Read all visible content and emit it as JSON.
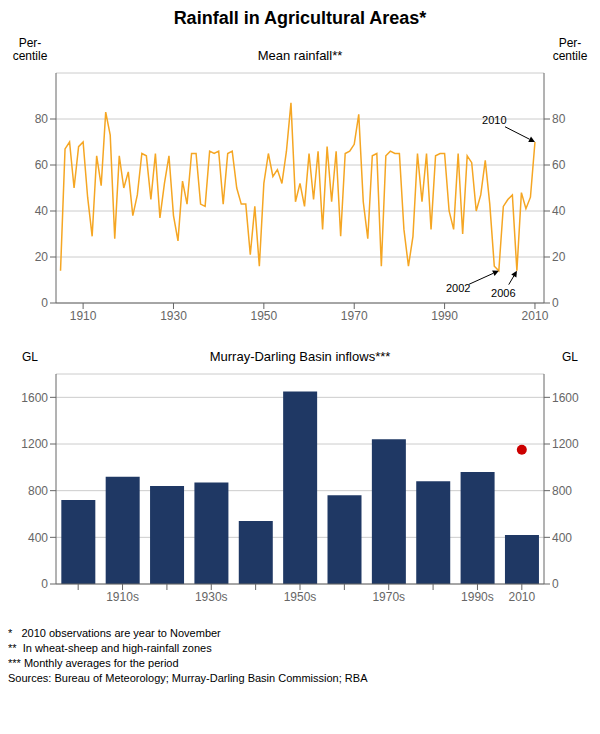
{
  "title": "Rainfall in Agricultural Areas*",
  "chart_data": [
    {
      "type": "line",
      "title": "Mean rainfall**",
      "ylabel": "Per-\ncentile",
      "y2label": "Per-\ncentile",
      "x": [
        1905,
        1906,
        1907,
        1908,
        1909,
        1910,
        1911,
        1912,
        1913,
        1914,
        1915,
        1916,
        1917,
        1918,
        1919,
        1920,
        1921,
        1922,
        1923,
        1924,
        1925,
        1926,
        1927,
        1928,
        1929,
        1930,
        1931,
        1932,
        1933,
        1934,
        1935,
        1936,
        1937,
        1938,
        1939,
        1940,
        1941,
        1942,
        1943,
        1944,
        1945,
        1946,
        1947,
        1948,
        1949,
        1950,
        1951,
        1952,
        1953,
        1954,
        1955,
        1956,
        1957,
        1958,
        1959,
        1960,
        1961,
        1962,
        1963,
        1964,
        1965,
        1966,
        1967,
        1968,
        1969,
        1970,
        1971,
        1972,
        1973,
        1974,
        1975,
        1976,
        1977,
        1978,
        1979,
        1980,
        1981,
        1982,
        1983,
        1984,
        1985,
        1986,
        1987,
        1988,
        1989,
        1990,
        1991,
        1992,
        1993,
        1994,
        1995,
        1996,
        1997,
        1998,
        1999,
        2000,
        2001,
        2002,
        2003,
        2004,
        2005,
        2006,
        2007,
        2008,
        2009,
        2010
      ],
      "series": [
        {
          "color": "#F5A623",
          "values": [
            14,
            67,
            70,
            50,
            68,
            70,
            46,
            29,
            64,
            51,
            83,
            73,
            28,
            64,
            50,
            57,
            38,
            47,
            65,
            64,
            45,
            65,
            37,
            52,
            64,
            38,
            27,
            53,
            43,
            65,
            65,
            43,
            42,
            66,
            65,
            66,
            43,
            65,
            66,
            50,
            43,
            43,
            21,
            42,
            16,
            52,
            65,
            55,
            58,
            52,
            66,
            87,
            44,
            52,
            42,
            65,
            45,
            66,
            32,
            68,
            44,
            66,
            29,
            65,
            66,
            69,
            82,
            44,
            28,
            64,
            65,
            16,
            64,
            66,
            65,
            65,
            32,
            16,
            29,
            65,
            44,
            65,
            32,
            64,
            65,
            65,
            40,
            32,
            65,
            30,
            64,
            61,
            40,
            47,
            62,
            43,
            16,
            14,
            42,
            45,
            47,
            14,
            48,
            41,
            46,
            70
          ]
        }
      ],
      "xlim": [
        1904,
        2012
      ],
      "xticks": [
        1910,
        1930,
        1950,
        1970,
        1990,
        2010
      ],
      "ylim": [
        0,
        100
      ],
      "yticks": [
        0,
        20,
        40,
        60,
        80
      ],
      "y2lim": [
        0,
        100
      ],
      "y2ticks": [
        0,
        20,
        40,
        60,
        80
      ],
      "grid": true,
      "annotations": [
        {
          "text": "2010",
          "xy": [
            2010,
            70
          ],
          "xytext": [
            2001,
            79
          ]
        },
        {
          "text": "2002",
          "xy": [
            2002,
            14
          ],
          "xytext": [
            1993,
            6
          ]
        },
        {
          "text": "2006",
          "xy": [
            2006,
            14
          ],
          "xytext": [
            2003,
            4
          ]
        }
      ]
    },
    {
      "type": "bar",
      "title": "Murray-Darling Basin inflows***",
      "ylabel": "GL",
      "y2label": "GL",
      "categories": [
        null,
        "1910s",
        null,
        "1930s",
        null,
        "1950s",
        null,
        "1970s",
        null,
        "1990s",
        "2010"
      ],
      "series": [
        {
          "type": "bar",
          "color": "#1F3864",
          "values": [
            720,
            920,
            840,
            870,
            540,
            1650,
            760,
            1240,
            880,
            960,
            420
          ]
        },
        {
          "type": "scatter",
          "color": "#CC0000",
          "marker": "circle",
          "values": [
            null,
            null,
            null,
            null,
            null,
            null,
            null,
            null,
            null,
            null,
            1150
          ]
        }
      ],
      "ylim": [
        0,
        1800
      ],
      "yticks": [
        0,
        400,
        800,
        1200,
        1600
      ],
      "y2lim": [
        0,
        1800
      ],
      "y2ticks": [
        0,
        400,
        800,
        1200,
        1600
      ],
      "grid": true
    }
  ],
  "footnotes": [
    "*   2010 observations are year to November",
    "**  In wheat-sheep and high-rainfall zones",
    "*** Monthly averages for the period",
    "Sources: Bureau of Meteorology; Murray-Darling Basin Commission; RBA"
  ]
}
